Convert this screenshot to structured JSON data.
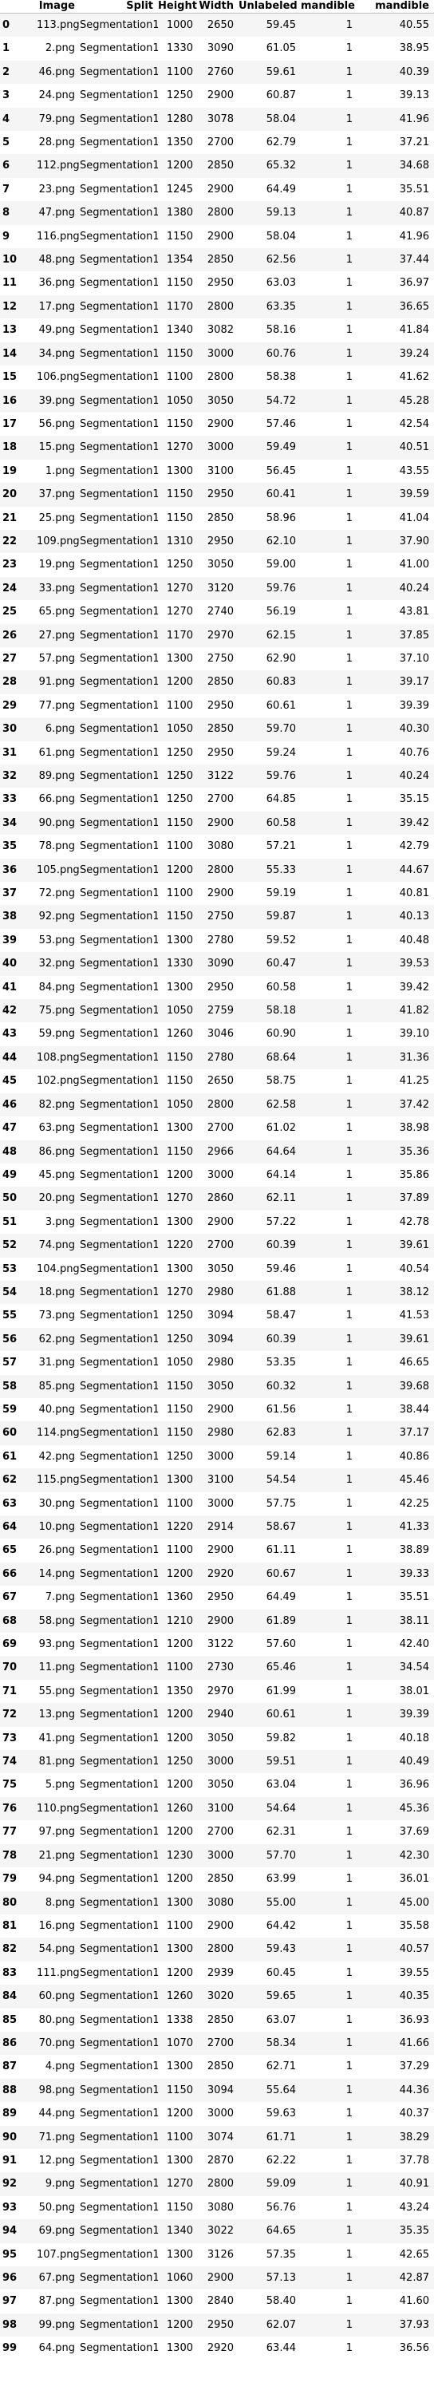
{
  "table": {
    "columns": [
      "",
      "Image",
      "Split",
      "Height",
      "Width",
      "Unlabeled",
      "mandible",
      "mandible"
    ],
    "rows": [
      [
        "0",
        "113.png",
        "Segmentation1",
        "1000",
        "2650",
        "59.45",
        "1",
        "40.55"
      ],
      [
        "1",
        "2.png",
        "Segmentation1",
        "1330",
        "3090",
        "61.05",
        "1",
        "38.95"
      ],
      [
        "2",
        "46.png",
        "Segmentation1",
        "1100",
        "2760",
        "59.61",
        "1",
        "40.39"
      ],
      [
        "3",
        "24.png",
        "Segmentation1",
        "1250",
        "2900",
        "60.87",
        "1",
        "39.13"
      ],
      [
        "4",
        "79.png",
        "Segmentation1",
        "1280",
        "3078",
        "58.04",
        "1",
        "41.96"
      ],
      [
        "5",
        "28.png",
        "Segmentation1",
        "1350",
        "2700",
        "62.79",
        "1",
        "37.21"
      ],
      [
        "6",
        "112.png",
        "Segmentation1",
        "1200",
        "2850",
        "65.32",
        "1",
        "34.68"
      ],
      [
        "7",
        "23.png",
        "Segmentation1",
        "1245",
        "2900",
        "64.49",
        "1",
        "35.51"
      ],
      [
        "8",
        "47.png",
        "Segmentation1",
        "1380",
        "2800",
        "59.13",
        "1",
        "40.87"
      ],
      [
        "9",
        "116.png",
        "Segmentation1",
        "1150",
        "2900",
        "58.04",
        "1",
        "41.96"
      ],
      [
        "10",
        "48.png",
        "Segmentation1",
        "1354",
        "2850",
        "62.56",
        "1",
        "37.44"
      ],
      [
        "11",
        "36.png",
        "Segmentation1",
        "1150",
        "2950",
        "63.03",
        "1",
        "36.97"
      ],
      [
        "12",
        "17.png",
        "Segmentation1",
        "1170",
        "2800",
        "63.35",
        "1",
        "36.65"
      ],
      [
        "13",
        "49.png",
        "Segmentation1",
        "1340",
        "3082",
        "58.16",
        "1",
        "41.84"
      ],
      [
        "14",
        "34.png",
        "Segmentation1",
        "1150",
        "3000",
        "60.76",
        "1",
        "39.24"
      ],
      [
        "15",
        "106.png",
        "Segmentation1",
        "1100",
        "2800",
        "58.38",
        "1",
        "41.62"
      ],
      [
        "16",
        "39.png",
        "Segmentation1",
        "1050",
        "3050",
        "54.72",
        "1",
        "45.28"
      ],
      [
        "17",
        "56.png",
        "Segmentation1",
        "1150",
        "2900",
        "57.46",
        "1",
        "42.54"
      ],
      [
        "18",
        "15.png",
        "Segmentation1",
        "1270",
        "3000",
        "59.49",
        "1",
        "40.51"
      ],
      [
        "19",
        "1.png",
        "Segmentation1",
        "1300",
        "3100",
        "56.45",
        "1",
        "43.55"
      ],
      [
        "20",
        "37.png",
        "Segmentation1",
        "1150",
        "2950",
        "60.41",
        "1",
        "39.59"
      ],
      [
        "21",
        "25.png",
        "Segmentation1",
        "1150",
        "2850",
        "58.96",
        "1",
        "41.04"
      ],
      [
        "22",
        "109.png",
        "Segmentation1",
        "1310",
        "2950",
        "62.10",
        "1",
        "37.90"
      ],
      [
        "23",
        "19.png",
        "Segmentation1",
        "1250",
        "3050",
        "59.00",
        "1",
        "41.00"
      ],
      [
        "24",
        "33.png",
        "Segmentation1",
        "1270",
        "3120",
        "59.76",
        "1",
        "40.24"
      ],
      [
        "25",
        "65.png",
        "Segmentation1",
        "1270",
        "2740",
        "56.19",
        "1",
        "43.81"
      ],
      [
        "26",
        "27.png",
        "Segmentation1",
        "1170",
        "2970",
        "62.15",
        "1",
        "37.85"
      ],
      [
        "27",
        "57.png",
        "Segmentation1",
        "1300",
        "2750",
        "62.90",
        "1",
        "37.10"
      ],
      [
        "28",
        "91.png",
        "Segmentation1",
        "1200",
        "2850",
        "60.83",
        "1",
        "39.17"
      ],
      [
        "29",
        "77.png",
        "Segmentation1",
        "1100",
        "2950",
        "60.61",
        "1",
        "39.39"
      ],
      [
        "30",
        "6.png",
        "Segmentation1",
        "1050",
        "2850",
        "59.70",
        "1",
        "40.30"
      ],
      [
        "31",
        "61.png",
        "Segmentation1",
        "1250",
        "2950",
        "59.24",
        "1",
        "40.76"
      ],
      [
        "32",
        "89.png",
        "Segmentation1",
        "1250",
        "3122",
        "59.76",
        "1",
        "40.24"
      ],
      [
        "33",
        "66.png",
        "Segmentation1",
        "1250",
        "2700",
        "64.85",
        "1",
        "35.15"
      ],
      [
        "34",
        "90.png",
        "Segmentation1",
        "1150",
        "2900",
        "60.58",
        "1",
        "39.42"
      ],
      [
        "35",
        "78.png",
        "Segmentation1",
        "1100",
        "3080",
        "57.21",
        "1",
        "42.79"
      ],
      [
        "36",
        "105.png",
        "Segmentation1",
        "1200",
        "2800",
        "55.33",
        "1",
        "44.67"
      ],
      [
        "37",
        "72.png",
        "Segmentation1",
        "1100",
        "2900",
        "59.19",
        "1",
        "40.81"
      ],
      [
        "38",
        "92.png",
        "Segmentation1",
        "1150",
        "2750",
        "59.87",
        "1",
        "40.13"
      ],
      [
        "39",
        "53.png",
        "Segmentation1",
        "1300",
        "2780",
        "59.52",
        "1",
        "40.48"
      ],
      [
        "40",
        "32.png",
        "Segmentation1",
        "1330",
        "3090",
        "60.47",
        "1",
        "39.53"
      ],
      [
        "41",
        "84.png",
        "Segmentation1",
        "1300",
        "2950",
        "60.58",
        "1",
        "39.42"
      ],
      [
        "42",
        "75.png",
        "Segmentation1",
        "1050",
        "2759",
        "58.18",
        "1",
        "41.82"
      ],
      [
        "43",
        "59.png",
        "Segmentation1",
        "1260",
        "3046",
        "60.90",
        "1",
        "39.10"
      ],
      [
        "44",
        "108.png",
        "Segmentation1",
        "1150",
        "2780",
        "68.64",
        "1",
        "31.36"
      ],
      [
        "45",
        "102.png",
        "Segmentation1",
        "1150",
        "2650",
        "58.75",
        "1",
        "41.25"
      ],
      [
        "46",
        "82.png",
        "Segmentation1",
        "1050",
        "2800",
        "62.58",
        "1",
        "37.42"
      ],
      [
        "47",
        "63.png",
        "Segmentation1",
        "1300",
        "2700",
        "61.02",
        "1",
        "38.98"
      ],
      [
        "48",
        "86.png",
        "Segmentation1",
        "1150",
        "2966",
        "64.64",
        "1",
        "35.36"
      ],
      [
        "49",
        "45.png",
        "Segmentation1",
        "1200",
        "3000",
        "64.14",
        "1",
        "35.86"
      ],
      [
        "50",
        "20.png",
        "Segmentation1",
        "1270",
        "2860",
        "62.11",
        "1",
        "37.89"
      ],
      [
        "51",
        "3.png",
        "Segmentation1",
        "1300",
        "2900",
        "57.22",
        "1",
        "42.78"
      ],
      [
        "52",
        "74.png",
        "Segmentation1",
        "1220",
        "2700",
        "60.39",
        "1",
        "39.61"
      ],
      [
        "53",
        "104.png",
        "Segmentation1",
        "1300",
        "3050",
        "59.46",
        "1",
        "40.54"
      ],
      [
        "54",
        "18.png",
        "Segmentation1",
        "1270",
        "2980",
        "61.88",
        "1",
        "38.12"
      ],
      [
        "55",
        "73.png",
        "Segmentation1",
        "1250",
        "3094",
        "58.47",
        "1",
        "41.53"
      ],
      [
        "56",
        "62.png",
        "Segmentation1",
        "1250",
        "3094",
        "60.39",
        "1",
        "39.61"
      ],
      [
        "57",
        "31.png",
        "Segmentation1",
        "1050",
        "2980",
        "53.35",
        "1",
        "46.65"
      ],
      [
        "58",
        "85.png",
        "Segmentation1",
        "1150",
        "3050",
        "60.32",
        "1",
        "39.68"
      ],
      [
        "59",
        "40.png",
        "Segmentation1",
        "1150",
        "2900",
        "61.56",
        "1",
        "38.44"
      ],
      [
        "60",
        "114.png",
        "Segmentation1",
        "1150",
        "2980",
        "62.83",
        "1",
        "37.17"
      ],
      [
        "61",
        "42.png",
        "Segmentation1",
        "1250",
        "3000",
        "59.14",
        "1",
        "40.86"
      ],
      [
        "62",
        "115.png",
        "Segmentation1",
        "1300",
        "3100",
        "54.54",
        "1",
        "45.46"
      ],
      [
        "63",
        "30.png",
        "Segmentation1",
        "1100",
        "3000",
        "57.75",
        "1",
        "42.25"
      ],
      [
        "64",
        "10.png",
        "Segmentation1",
        "1220",
        "2914",
        "58.67",
        "1",
        "41.33"
      ],
      [
        "65",
        "26.png",
        "Segmentation1",
        "1100",
        "2900",
        "61.11",
        "1",
        "38.89"
      ],
      [
        "66",
        "14.png",
        "Segmentation1",
        "1200",
        "2920",
        "60.67",
        "1",
        "39.33"
      ],
      [
        "67",
        "7.png",
        "Segmentation1",
        "1360",
        "2950",
        "64.49",
        "1",
        "35.51"
      ],
      [
        "68",
        "58.png",
        "Segmentation1",
        "1210",
        "2900",
        "61.89",
        "1",
        "38.11"
      ],
      [
        "69",
        "93.png",
        "Segmentation1",
        "1200",
        "3122",
        "57.60",
        "1",
        "42.40"
      ],
      [
        "70",
        "11.png",
        "Segmentation1",
        "1100",
        "2730",
        "65.46",
        "1",
        "34.54"
      ],
      [
        "71",
        "55.png",
        "Segmentation1",
        "1350",
        "2970",
        "61.99",
        "1",
        "38.01"
      ],
      [
        "72",
        "13.png",
        "Segmentation1",
        "1200",
        "2940",
        "60.61",
        "1",
        "39.39"
      ],
      [
        "73",
        "41.png",
        "Segmentation1",
        "1200",
        "3050",
        "59.82",
        "1",
        "40.18"
      ],
      [
        "74",
        "81.png",
        "Segmentation1",
        "1250",
        "3000",
        "59.51",
        "1",
        "40.49"
      ],
      [
        "75",
        "5.png",
        "Segmentation1",
        "1200",
        "3050",
        "63.04",
        "1",
        "36.96"
      ],
      [
        "76",
        "110.png",
        "Segmentation1",
        "1260",
        "3100",
        "54.64",
        "1",
        "45.36"
      ],
      [
        "77",
        "97.png",
        "Segmentation1",
        "1200",
        "2700",
        "62.31",
        "1",
        "37.69"
      ],
      [
        "78",
        "21.png",
        "Segmentation1",
        "1230",
        "3000",
        "57.70",
        "1",
        "42.30"
      ],
      [
        "79",
        "94.png",
        "Segmentation1",
        "1200",
        "2850",
        "63.99",
        "1",
        "36.01"
      ],
      [
        "80",
        "8.png",
        "Segmentation1",
        "1300",
        "3080",
        "55.00",
        "1",
        "45.00"
      ],
      [
        "81",
        "16.png",
        "Segmentation1",
        "1100",
        "2900",
        "64.42",
        "1",
        "35.58"
      ],
      [
        "82",
        "54.png",
        "Segmentation1",
        "1300",
        "2800",
        "59.43",
        "1",
        "40.57"
      ],
      [
        "83",
        "111.png",
        "Segmentation1",
        "1200",
        "2939",
        "60.45",
        "1",
        "39.55"
      ],
      [
        "84",
        "60.png",
        "Segmentation1",
        "1260",
        "3020",
        "59.65",
        "1",
        "40.35"
      ],
      [
        "85",
        "80.png",
        "Segmentation1",
        "1338",
        "2850",
        "63.07",
        "1",
        "36.93"
      ],
      [
        "86",
        "70.png",
        "Segmentation1",
        "1070",
        "2700",
        "58.34",
        "1",
        "41.66"
      ],
      [
        "87",
        "4.png",
        "Segmentation1",
        "1300",
        "2850",
        "62.71",
        "1",
        "37.29"
      ],
      [
        "88",
        "98.png",
        "Segmentation1",
        "1150",
        "3094",
        "55.64",
        "1",
        "44.36"
      ],
      [
        "89",
        "44.png",
        "Segmentation1",
        "1200",
        "3000",
        "59.63",
        "1",
        "40.37"
      ],
      [
        "90",
        "71.png",
        "Segmentation1",
        "1100",
        "3074",
        "61.71",
        "1",
        "38.29"
      ],
      [
        "91",
        "12.png",
        "Segmentation1",
        "1300",
        "2870",
        "62.22",
        "1",
        "37.78"
      ],
      [
        "92",
        "9.png",
        "Segmentation1",
        "1270",
        "2800",
        "59.09",
        "1",
        "40.91"
      ],
      [
        "93",
        "50.png",
        "Segmentation1",
        "1150",
        "3080",
        "56.76",
        "1",
        "43.24"
      ],
      [
        "94",
        "69.png",
        "Segmentation1",
        "1340",
        "3022",
        "64.65",
        "1",
        "35.35"
      ],
      [
        "95",
        "107.png",
        "Segmentation1",
        "1300",
        "3126",
        "57.35",
        "1",
        "42.65"
      ],
      [
        "96",
        "67.png",
        "Segmentation1",
        "1060",
        "2900",
        "57.13",
        "1",
        "42.87"
      ],
      [
        "97",
        "87.png",
        "Segmentation1",
        "1300",
        "2840",
        "58.40",
        "1",
        "41.60"
      ],
      [
        "98",
        "99.png",
        "Segmentation1",
        "1200",
        "2950",
        "62.07",
        "1",
        "37.93"
      ],
      [
        "99",
        "64.png",
        "Segmentation1",
        "1300",
        "2920",
        "63.44",
        "1",
        "36.56"
      ]
    ]
  }
}
